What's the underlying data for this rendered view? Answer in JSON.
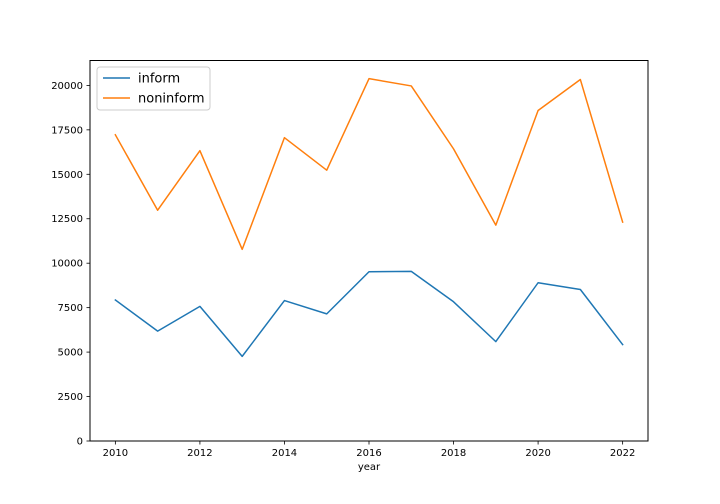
{
  "chart_data": {
    "type": "line",
    "title": "",
    "xlabel": "year",
    "ylabel": "",
    "x": [
      2010,
      2011,
      2012,
      2013,
      2014,
      2015,
      2016,
      2017,
      2018,
      2019,
      2020,
      2021,
      2022
    ],
    "xlim": [
      2009.4,
      2022.6
    ],
    "ylim": [
      0,
      21400
    ],
    "xticks": [
      2010,
      2012,
      2014,
      2016,
      2018,
      2020,
      2022
    ],
    "yticks": [
      0,
      2500,
      5000,
      7500,
      10000,
      12500,
      15000,
      17500,
      20000
    ],
    "grid": false,
    "legend_position": "upper-left",
    "series": [
      {
        "name": "inform",
        "color": "#1f77b4",
        "values": [
          7930,
          6180,
          7570,
          4760,
          7900,
          7150,
          9520,
          9540,
          7830,
          5590,
          8900,
          8520,
          5420
        ]
      },
      {
        "name": "noninform",
        "color": "#ff7f0e",
        "values": [
          17220,
          12980,
          16330,
          10780,
          17060,
          15230,
          20380,
          19970,
          16430,
          12140,
          18590,
          20330,
          12310
        ]
      }
    ]
  }
}
